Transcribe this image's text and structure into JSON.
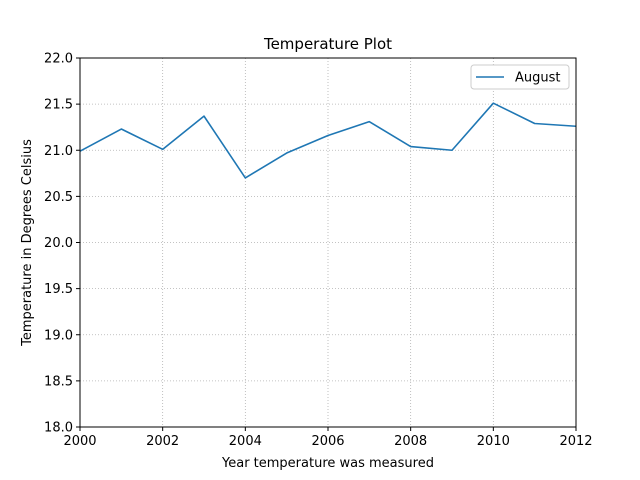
{
  "chart_data": {
    "type": "line",
    "title": "Temperature Plot",
    "xlabel": "Year temperature was measured",
    "ylabel": "Temperature in Degrees Celsius",
    "xlim": [
      2000,
      2012
    ],
    "ylim": [
      18.0,
      22.0
    ],
    "xticks": [
      2000,
      2002,
      2004,
      2006,
      2008,
      2010,
      2012
    ],
    "xtick_labels": [
      "2000",
      "2002",
      "2004",
      "2006",
      "2008",
      "2010",
      "2012"
    ],
    "yticks": [
      18.0,
      18.5,
      19.0,
      19.5,
      20.0,
      20.5,
      21.0,
      21.5,
      22.0
    ],
    "ytick_labels": [
      "18.0",
      "18.5",
      "19.0",
      "19.5",
      "20.0",
      "20.5",
      "21.0",
      "21.5",
      "22.0"
    ],
    "grid": true,
    "legend_position": "top-right",
    "x": [
      2000,
      2001,
      2002,
      2003,
      2004,
      2005,
      2006,
      2007,
      2008,
      2009,
      2010,
      2011,
      2012
    ],
    "series": [
      {
        "name": "August",
        "color": "#1f77b4",
        "values": [
          20.99,
          21.23,
          21.01,
          21.37,
          20.7,
          20.97,
          21.16,
          21.31,
          21.04,
          21.0,
          21.51,
          21.29,
          21.26
        ]
      }
    ]
  }
}
